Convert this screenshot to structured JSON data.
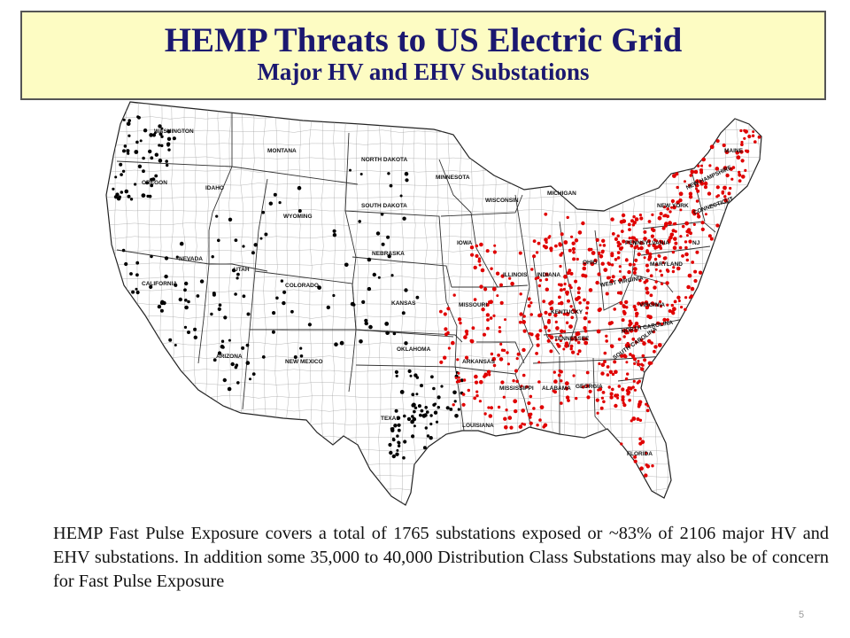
{
  "title": {
    "main": "HEMP Threats to US Electric Grid",
    "subtitle": "Major HV and EHV Substations"
  },
  "map": {
    "colors": {
      "exposed_substations": "#e00000",
      "other_substations": "#000000",
      "title_fill": "#fdfcc3",
      "title_text": "#1b1870"
    },
    "state_labels": [
      "WASHINGTON",
      "OREGON",
      "CALIFORNIA",
      "IDAHO",
      "NEVADA",
      "MONTANA",
      "WYOMING",
      "UTAH",
      "ARIZONA",
      "COLORADO",
      "NEW MEXICO",
      "NORTH DAKOTA",
      "SOUTH DAKOTA",
      "NEBRASKA",
      "KANSAS",
      "OKLAHOMA",
      "TEXAS",
      "MINNESOTA",
      "IOWA",
      "MISSOURI",
      "ARKANSAS",
      "LOUISIANA",
      "WISCONSIN",
      "ILLINOIS",
      "MICHIGAN",
      "INDIANA",
      "OHIO",
      "KENTUCKY",
      "TENNESSEE",
      "MISSISSIPPI",
      "ALABAMA",
      "GEORGIA",
      "FLORIDA",
      "SOUTH CAROLINA",
      "NORTH CAROLINA",
      "VIRGINIA",
      "WEST VIRGINIA",
      "MARYLAND",
      "PENNSYLVANIA",
      "NEW YORK",
      "CONNECTICUT",
      "NEW HAMPSHIRE",
      "MAINE",
      "NJ"
    ]
  },
  "caption": "HEMP Fast Pulse Exposure covers a total of 1765 substations exposed or ~83% of 2106 major HV and EHV substations. In addition some 35,000 to 40,000 Distribution Class Substations may also be of concern for Fast Pulse Exposure",
  "page_number": "5"
}
